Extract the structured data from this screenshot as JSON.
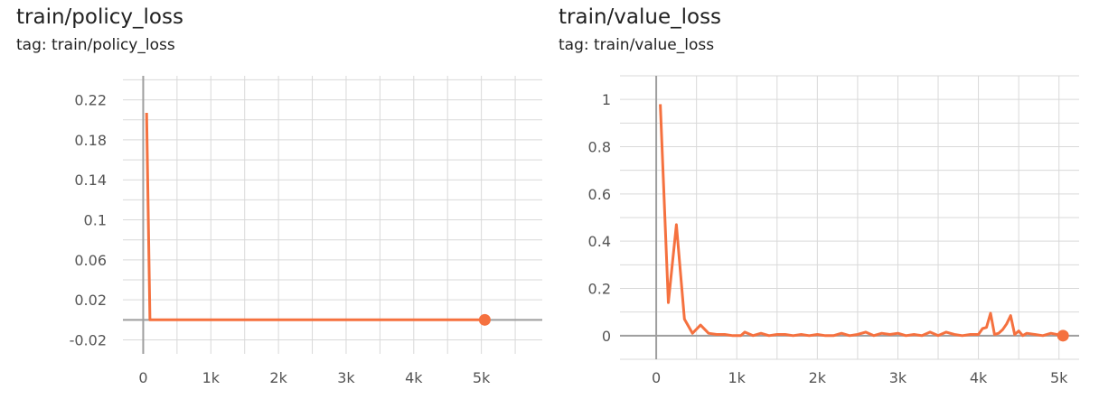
{
  "colors": {
    "series": "#f5713f",
    "grid": "#d9d9d9",
    "axis": "#9e9e9e",
    "tick_text": "#555555"
  },
  "chart_data": [
    {
      "type": "line",
      "title": "train/policy_loss",
      "subtitle": "tag: train/policy_loss",
      "xlabel": "",
      "ylabel": "",
      "xlim": [
        -300,
        5900
      ],
      "ylim": [
        -0.034,
        0.244
      ],
      "xticks": [
        0,
        1000,
        2000,
        3000,
        4000,
        5000
      ],
      "xtick_labels": [
        "0",
        "1k",
        "2k",
        "3k",
        "4k",
        "5k"
      ],
      "yticks": [
        0.22,
        0.18,
        0.14,
        0.1,
        0.06,
        0.02,
        -0.02
      ],
      "ytick_labels": [
        "0.22",
        "0.18",
        "0.14",
        "0.1",
        "0.06",
        "0.02",
        "-0.02"
      ],
      "grid": true,
      "series": [
        {
          "x": [
            50,
            100,
            200,
            500,
            1000,
            2000,
            3000,
            4000,
            5050
          ],
          "y": [
            0.207,
            0.0,
            0.0,
            0.0,
            0.0,
            0.0,
            0.0,
            0.0,
            0.0
          ],
          "last_point_marker": true
        }
      ]
    },
    {
      "type": "line",
      "title": "train/value_loss",
      "subtitle": "tag: train/value_loss",
      "xlabel": "",
      "ylabel": "",
      "xlim": [
        -450,
        5250
      ],
      "ylim": [
        -0.1,
        1.1
      ],
      "xticks": [
        0,
        1000,
        2000,
        3000,
        4000,
        5000
      ],
      "xtick_labels": [
        "0",
        "1k",
        "2k",
        "3k",
        "4k",
        "5k"
      ],
      "yticks": [
        1,
        0.8,
        0.6,
        0.4,
        0.2,
        0
      ],
      "ytick_labels": [
        "1",
        "0.8",
        "0.6",
        "0.4",
        "0.2",
        "0"
      ],
      "grid": true,
      "series": [
        {
          "x": [
            50,
            150,
            250,
            350,
            450,
            550,
            650,
            750,
            850,
            950,
            1050,
            1100,
            1200,
            1300,
            1400,
            1500,
            1600,
            1700,
            1800,
            1900,
            2000,
            2100,
            2200,
            2300,
            2400,
            2500,
            2600,
            2700,
            2800,
            2900,
            3000,
            3100,
            3200,
            3300,
            3400,
            3500,
            3600,
            3700,
            3800,
            3900,
            4000,
            4050,
            4100,
            4150,
            4200,
            4250,
            4300,
            4350,
            4400,
            4450,
            4500,
            4550,
            4600,
            4700,
            4800,
            4900,
            5050
          ],
          "y": [
            0.98,
            0.14,
            0.47,
            0.07,
            0.01,
            0.045,
            0.01,
            0.005,
            0.005,
            0.0,
            0.0,
            0.015,
            0.0,
            0.01,
            0.0,
            0.005,
            0.005,
            0.0,
            0.005,
            0.0,
            0.005,
            0.0,
            0.0,
            0.01,
            0.0,
            0.005,
            0.015,
            0.0,
            0.01,
            0.005,
            0.01,
            0.0,
            0.005,
            0.0,
            0.015,
            0.0,
            0.015,
            0.005,
            0.0,
            0.005,
            0.005,
            0.03,
            0.035,
            0.095,
            0.005,
            0.01,
            0.025,
            0.05,
            0.085,
            0.005,
            0.02,
            0.0,
            0.01,
            0.005,
            0.0,
            0.01,
            0.0
          ],
          "last_point_marker": true
        }
      ]
    }
  ]
}
